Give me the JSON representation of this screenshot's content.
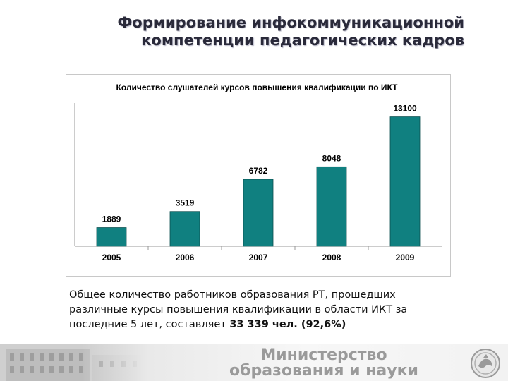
{
  "header": {
    "title_line1": "Формирование инфокоммуникационной",
    "title_line2": "компетенции педагогических кадров"
  },
  "chart_data": {
    "type": "bar",
    "title": "Количество слушателей курсов повышения квалификации по ИКТ",
    "categories": [
      "2005",
      "2006",
      "2007",
      "2008",
      "2009"
    ],
    "values": [
      1889,
      3519,
      6782,
      8048,
      13100
    ],
    "ylim": [
      0,
      14500
    ],
    "bar_color": "#108080",
    "grid": false,
    "legend": "none"
  },
  "description": {
    "line1": "Общее количество работников образования РТ, прошедших",
    "line2": "различные курсы повышения квалификации в области ИКТ за",
    "line3_prefix": "последние 5 лет, составляет ",
    "line3_bold": "33 339 чел. (92,6%)"
  },
  "footer": {
    "ministry_line1": "Министерство",
    "ministry_line2": "образования и науки",
    "emblem_icon": "tatarstan-emblem-icon"
  }
}
